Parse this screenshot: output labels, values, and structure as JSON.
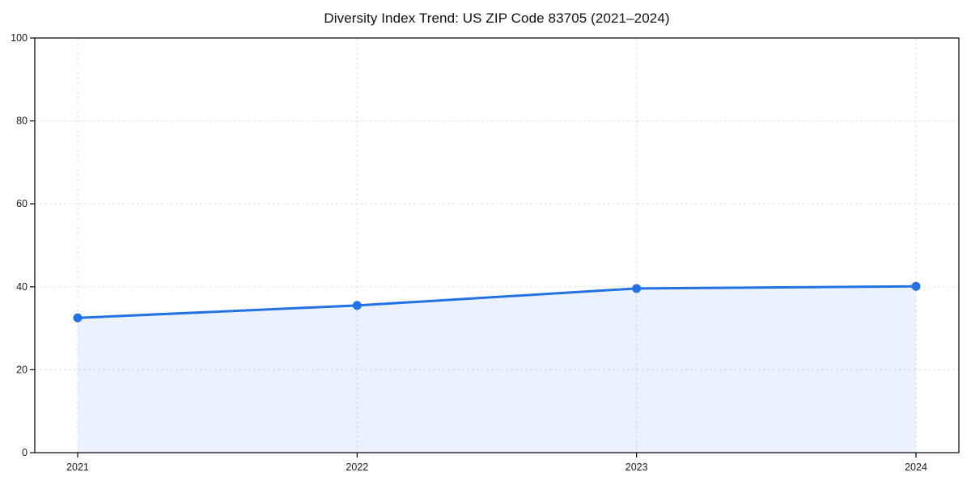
{
  "chart_data": {
    "type": "area",
    "title": "Diversity Index Trend: US ZIP Code 83705 (2021–2024)",
    "categories": [
      "2021",
      "2022",
      "2023",
      "2024"
    ],
    "values": [
      32.5,
      35.5,
      39.6,
      40.1
    ],
    "xlabel": "",
    "ylabel": "",
    "ylim": [
      0,
      100
    ],
    "yticks": [
      0,
      20,
      40,
      60,
      80,
      100
    ],
    "grid": "dashed",
    "legend_position": "none",
    "marker": "circle",
    "colors": {
      "line": "#2272e6",
      "fill": "#2272e6",
      "fill_opacity": 0.09,
      "grid": "#e0e0e0",
      "spine": "#000000",
      "text": "#1a1a1a",
      "background": "#ffffff"
    }
  }
}
